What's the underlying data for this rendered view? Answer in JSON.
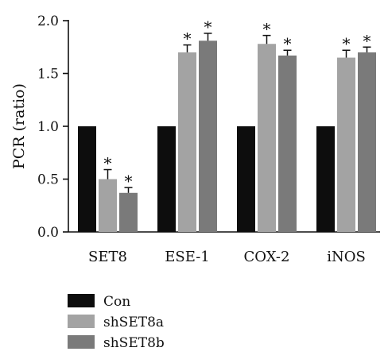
{
  "chart_data": {
    "type": "bar",
    "title": "",
    "xlabel": "",
    "ylabel": "PCR (ratio)",
    "ylim": [
      0,
      2.0
    ],
    "yticks": [
      "0.0",
      "0.5",
      "1.0",
      "1.5",
      "2.0"
    ],
    "categories": [
      "SET8",
      "ESE-1",
      "COX-2",
      "iNOS"
    ],
    "legend_position": "bottom-left",
    "grid": false,
    "series": [
      {
        "name": "Con",
        "color": "#0d0d0d",
        "values": [
          1.0,
          1.0,
          1.0,
          1.0
        ],
        "errors": [
          0,
          0,
          0,
          0
        ],
        "significance": [
          "",
          "",
          "",
          ""
        ]
      },
      {
        "name": "shSET8a",
        "color": "#a3a3a3",
        "values": [
          0.5,
          1.7,
          1.78,
          1.65
        ],
        "errors": [
          0.09,
          0.07,
          0.08,
          0.07
        ],
        "significance": [
          "*",
          "*",
          "*",
          "*"
        ]
      },
      {
        "name": "shSET8b",
        "color": "#7a7a7a",
        "values": [
          0.37,
          1.81,
          1.67,
          1.7
        ],
        "errors": [
          0.05,
          0.07,
          0.05,
          0.05
        ],
        "significance": [
          "*",
          "*",
          "*",
          "*"
        ]
      }
    ]
  }
}
